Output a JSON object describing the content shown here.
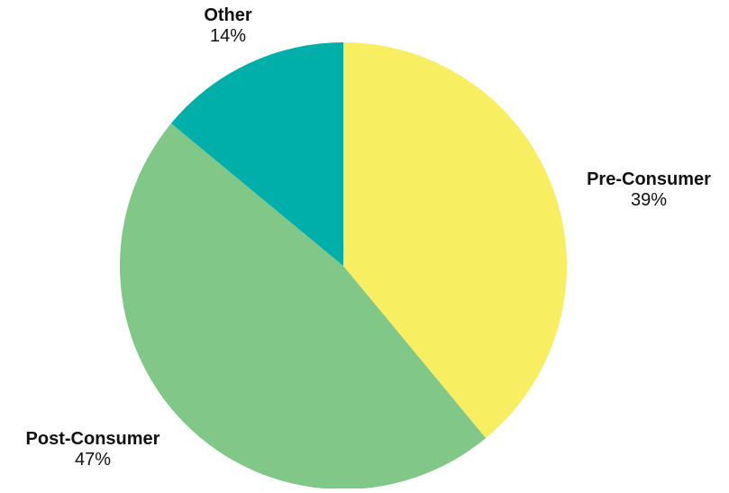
{
  "chart_data": {
    "type": "pie",
    "title": "",
    "slices": [
      {
        "label": "Pre-Consumer",
        "value": 39,
        "display": "39%",
        "color": "#f8ee62"
      },
      {
        "label": "Post-Consumer",
        "value": 47,
        "display": "47%",
        "color": "#81c888"
      },
      {
        "label": "Other",
        "value": 14,
        "display": "14%",
        "color": "#00aeaa"
      }
    ],
    "start": "12 o'clock",
    "direction": "clockwise",
    "legend": "none",
    "labels": "outside"
  }
}
